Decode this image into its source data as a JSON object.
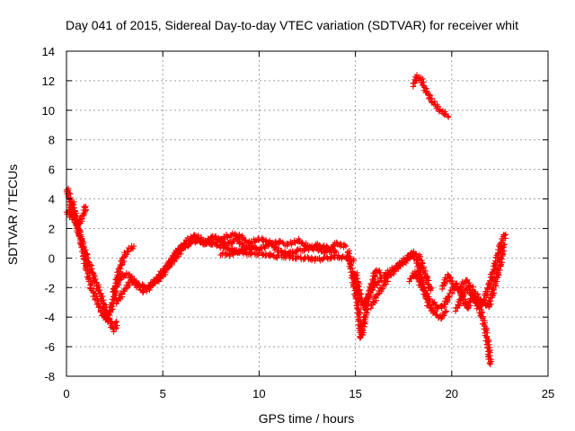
{
  "chart_data": {
    "type": "scatter",
    "title": "Day 041 of 2015, Sidereal Day-to-day VTEC variation (SDTVAR) for receiver whit",
    "xlabel": "GPS time / hours",
    "ylabel": "SDTVAR / TECUs",
    "xlim": [
      0,
      25
    ],
    "ylim": [
      -8,
      14
    ],
    "xticks": [
      "0",
      "5",
      "10",
      "15",
      "20",
      "25"
    ],
    "yticks": [
      "-8",
      "-6",
      "-4",
      "-2",
      "0",
      "2",
      "4",
      "6",
      "8",
      "10",
      "12",
      "14"
    ],
    "grid": true,
    "marker": "+",
    "series": [
      {
        "name": "SDTVAR",
        "color": "#ff0000",
        "traces": [
          {
            "x": [
              0.0,
              0.1,
              0.2,
              0.3,
              0.5,
              0.8,
              1.0,
              1.3,
              1.6,
              1.9,
              2.1,
              2.3,
              2.5,
              2.7,
              3.0,
              3.3,
              3.5
            ],
            "y": [
              4.7,
              4.5,
              3.8,
              3.0,
              2.5,
              1.0,
              -0.5,
              -2.0,
              -3.0,
              -3.8,
              -4.3,
              -3.5,
              -2.5,
              -1.0,
              0.2,
              0.6,
              0.8
            ]
          },
          {
            "x": [
              0.0,
              0.2,
              0.4,
              0.6,
              0.9,
              1.0
            ],
            "y": [
              3.2,
              2.9,
              2.6,
              2.2,
              3.0,
              3.5
            ]
          },
          {
            "x": [
              0.3,
              0.6,
              1.0,
              1.4,
              1.8,
              2.1,
              2.3,
              2.5,
              2.6
            ],
            "y": [
              3.8,
              2.0,
              0.2,
              -1.2,
              -2.6,
              -3.8,
              -4.5,
              -4.9,
              -4.3
            ]
          },
          {
            "x": [
              2.6,
              3.0,
              3.4,
              3.8,
              4.2,
              4.6,
              5.0,
              5.4,
              5.8,
              6.2,
              6.6,
              7.0
            ],
            "y": [
              -3.0,
              -2.2,
              -1.5,
              -1.8,
              -2.0,
              -1.6,
              -1.0,
              -0.3,
              0.5,
              1.1,
              1.5,
              1.4
            ]
          },
          {
            "x": [
              2.4,
              2.7,
              3.0,
              3.3,
              3.6,
              4.0,
              4.4,
              4.8,
              5.2,
              5.6,
              6.0
            ],
            "y": [
              -2.2,
              -1.6,
              -1.1,
              -1.2,
              -1.8,
              -2.3,
              -1.9,
              -1.2,
              -0.6,
              0.2,
              0.8
            ]
          },
          {
            "x": [
              4.8,
              5.2,
              5.6,
              6.0,
              6.4,
              6.8,
              7.2,
              7.6,
              8.0,
              8.4,
              8.8,
              9.2,
              9.6
            ],
            "y": [
              -1.5,
              -0.8,
              -0.1,
              0.6,
              1.0,
              1.2,
              0.9,
              1.5,
              1.2,
              0.9,
              1.3,
              0.8,
              0.6
            ]
          },
          {
            "x": [
              7.5,
              8.0,
              8.5,
              9.0,
              9.5,
              10.0,
              10.5,
              11.0,
              11.5,
              12.0,
              12.5,
              13.0,
              13.5,
              14.0
            ],
            "y": [
              1.0,
              1.2,
              1.6,
              1.5,
              1.0,
              1.3,
              1.1,
              0.5,
              0.3,
              0.5,
              0.6,
              0.9,
              0.7,
              0.4
            ]
          },
          {
            "x": [
              6.5,
              7.0,
              7.5,
              8.0,
              8.5,
              9.0,
              9.5,
              10.0,
              10.5,
              11.0,
              11.5,
              12.0,
              12.5,
              13.0,
              13.5,
              14.0,
              14.5,
              14.9
            ],
            "y": [
              1.4,
              1.2,
              1.0,
              0.8,
              0.6,
              0.4,
              0.3,
              0.3,
              0.2,
              0.1,
              0.1,
              0.0,
              0.0,
              -0.1,
              0.0,
              0.1,
              0.0,
              -0.2
            ]
          },
          {
            "x": [
              8.0,
              8.5,
              9.0,
              9.5,
              10.0,
              10.5,
              11.0,
              11.5,
              12.0,
              12.5,
              13.0,
              13.5,
              14.0,
              14.5
            ],
            "y": [
              0.3,
              0.2,
              0.5,
              0.8,
              0.6,
              0.9,
              1.1,
              0.9,
              1.2,
              0.8,
              0.6,
              0.4,
              1.0,
              0.8
            ]
          },
          {
            "x": [
              14.6,
              14.9,
              15.1,
              15.3,
              15.5,
              15.7,
              15.9,
              16.1,
              16.3
            ],
            "y": [
              0.5,
              -1.5,
              -3.0,
              -5.4,
              -4.0,
              -2.5,
              -1.5,
              -0.8,
              -1.0
            ]
          },
          {
            "x": [
              15.0,
              15.2,
              15.4,
              15.6,
              15.9,
              16.2,
              16.5,
              16.8,
              17.1,
              17.4,
              17.7,
              18.0,
              18.3,
              18.6,
              18.9
            ],
            "y": [
              -1.0,
              -2.3,
              -3.3,
              -2.8,
              -2.0,
              -1.6,
              -1.2,
              -0.9,
              -0.6,
              -0.3,
              0.0,
              0.4,
              0.1,
              -1.0,
              -2.2
            ]
          },
          {
            "x": [
              15.8,
              16.1,
              16.4,
              16.7,
              17.0,
              17.3,
              17.6,
              17.9,
              18.2,
              18.5,
              18.8,
              19.1,
              19.4,
              19.7
            ],
            "y": [
              -3.3,
              -2.6,
              -2.0,
              -1.3,
              -0.9,
              -0.5,
              -0.2,
              0.2,
              -0.2,
              -1.8,
              -3.2,
              -3.7,
              -4.1,
              -3.6
            ]
          },
          {
            "x": [
              17.8,
              18.1,
              18.4,
              18.7,
              19.0,
              19.3,
              19.6,
              19.9,
              20.2,
              20.5,
              20.8,
              21.1,
              21.4,
              21.7,
              21.9,
              22.0
            ],
            "y": [
              -1.5,
              -1.0,
              -1.8,
              -2.6,
              -3.0,
              -3.4,
              -3.2,
              -2.5,
              -1.8,
              -2.4,
              -3.4,
              -2.5,
              -3.2,
              -4.5,
              -6.0,
              -7.2
            ]
          },
          {
            "x": [
              19.5,
              19.8,
              20.1,
              20.4,
              20.7,
              21.0,
              21.3,
              21.6,
              21.9,
              22.2,
              22.5,
              22.7
            ],
            "y": [
              -2.0,
              -1.2,
              -1.8,
              -2.2,
              -1.5,
              -1.9,
              -2.6,
              -3.0,
              -3.3,
              -2.0,
              -0.5,
              0.9
            ]
          },
          {
            "x": [
              20.2,
              20.5,
              20.8,
              21.1,
              21.4,
              21.7,
              22.0,
              22.3,
              22.6,
              22.8
            ],
            "y": [
              -3.5,
              -2.8,
              -2.0,
              -2.6,
              -3.4,
              -2.8,
              -1.6,
              -0.3,
              1.2,
              1.6
            ]
          },
          {
            "x": [
              18.0,
              18.2,
              18.4,
              18.6,
              18.8,
              19.0,
              19.2,
              19.4,
              19.6,
              19.8
            ],
            "y": [
              11.7,
              12.3,
              12.1,
              11.5,
              11.0,
              10.6,
              10.3,
              10.0,
              9.8,
              9.6
            ]
          }
        ]
      }
    ]
  }
}
